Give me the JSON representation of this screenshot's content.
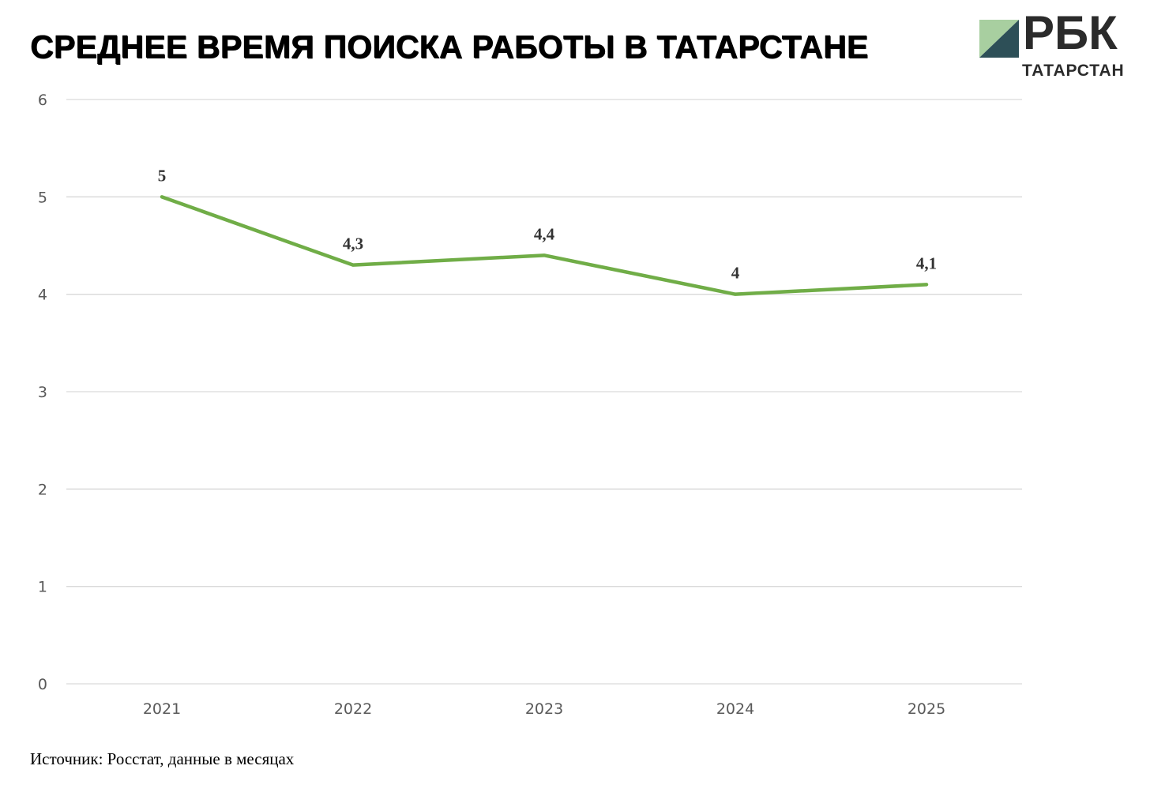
{
  "title": "СРЕДНЕЕ ВРЕМЯ ПОИСКА РАБОТЫ В ТАТАРСТАНЕ",
  "logo": {
    "name": "РБК",
    "region": "ТАТАРСТАН"
  },
  "source": "Источник: Росстат, данные в месяцах",
  "colors": {
    "line": "#70ad47",
    "grid": "#d9d9d9",
    "logo_light": "#a8cfa0",
    "logo_dark": "#2d4f57"
  },
  "chart_data": {
    "type": "line",
    "categories": [
      "2021",
      "2022",
      "2023",
      "2024",
      "2025"
    ],
    "series": [
      {
        "values": [
          5,
          4.3,
          4.4,
          4,
          4.1
        ],
        "labels": [
          "5",
          "4,3",
          "4,4",
          "4",
          "4,1"
        ]
      }
    ],
    "ylim": [
      0,
      6
    ],
    "yticks": [
      0,
      1,
      2,
      3,
      4,
      5,
      6
    ],
    "grid": true,
    "legend": "none"
  }
}
